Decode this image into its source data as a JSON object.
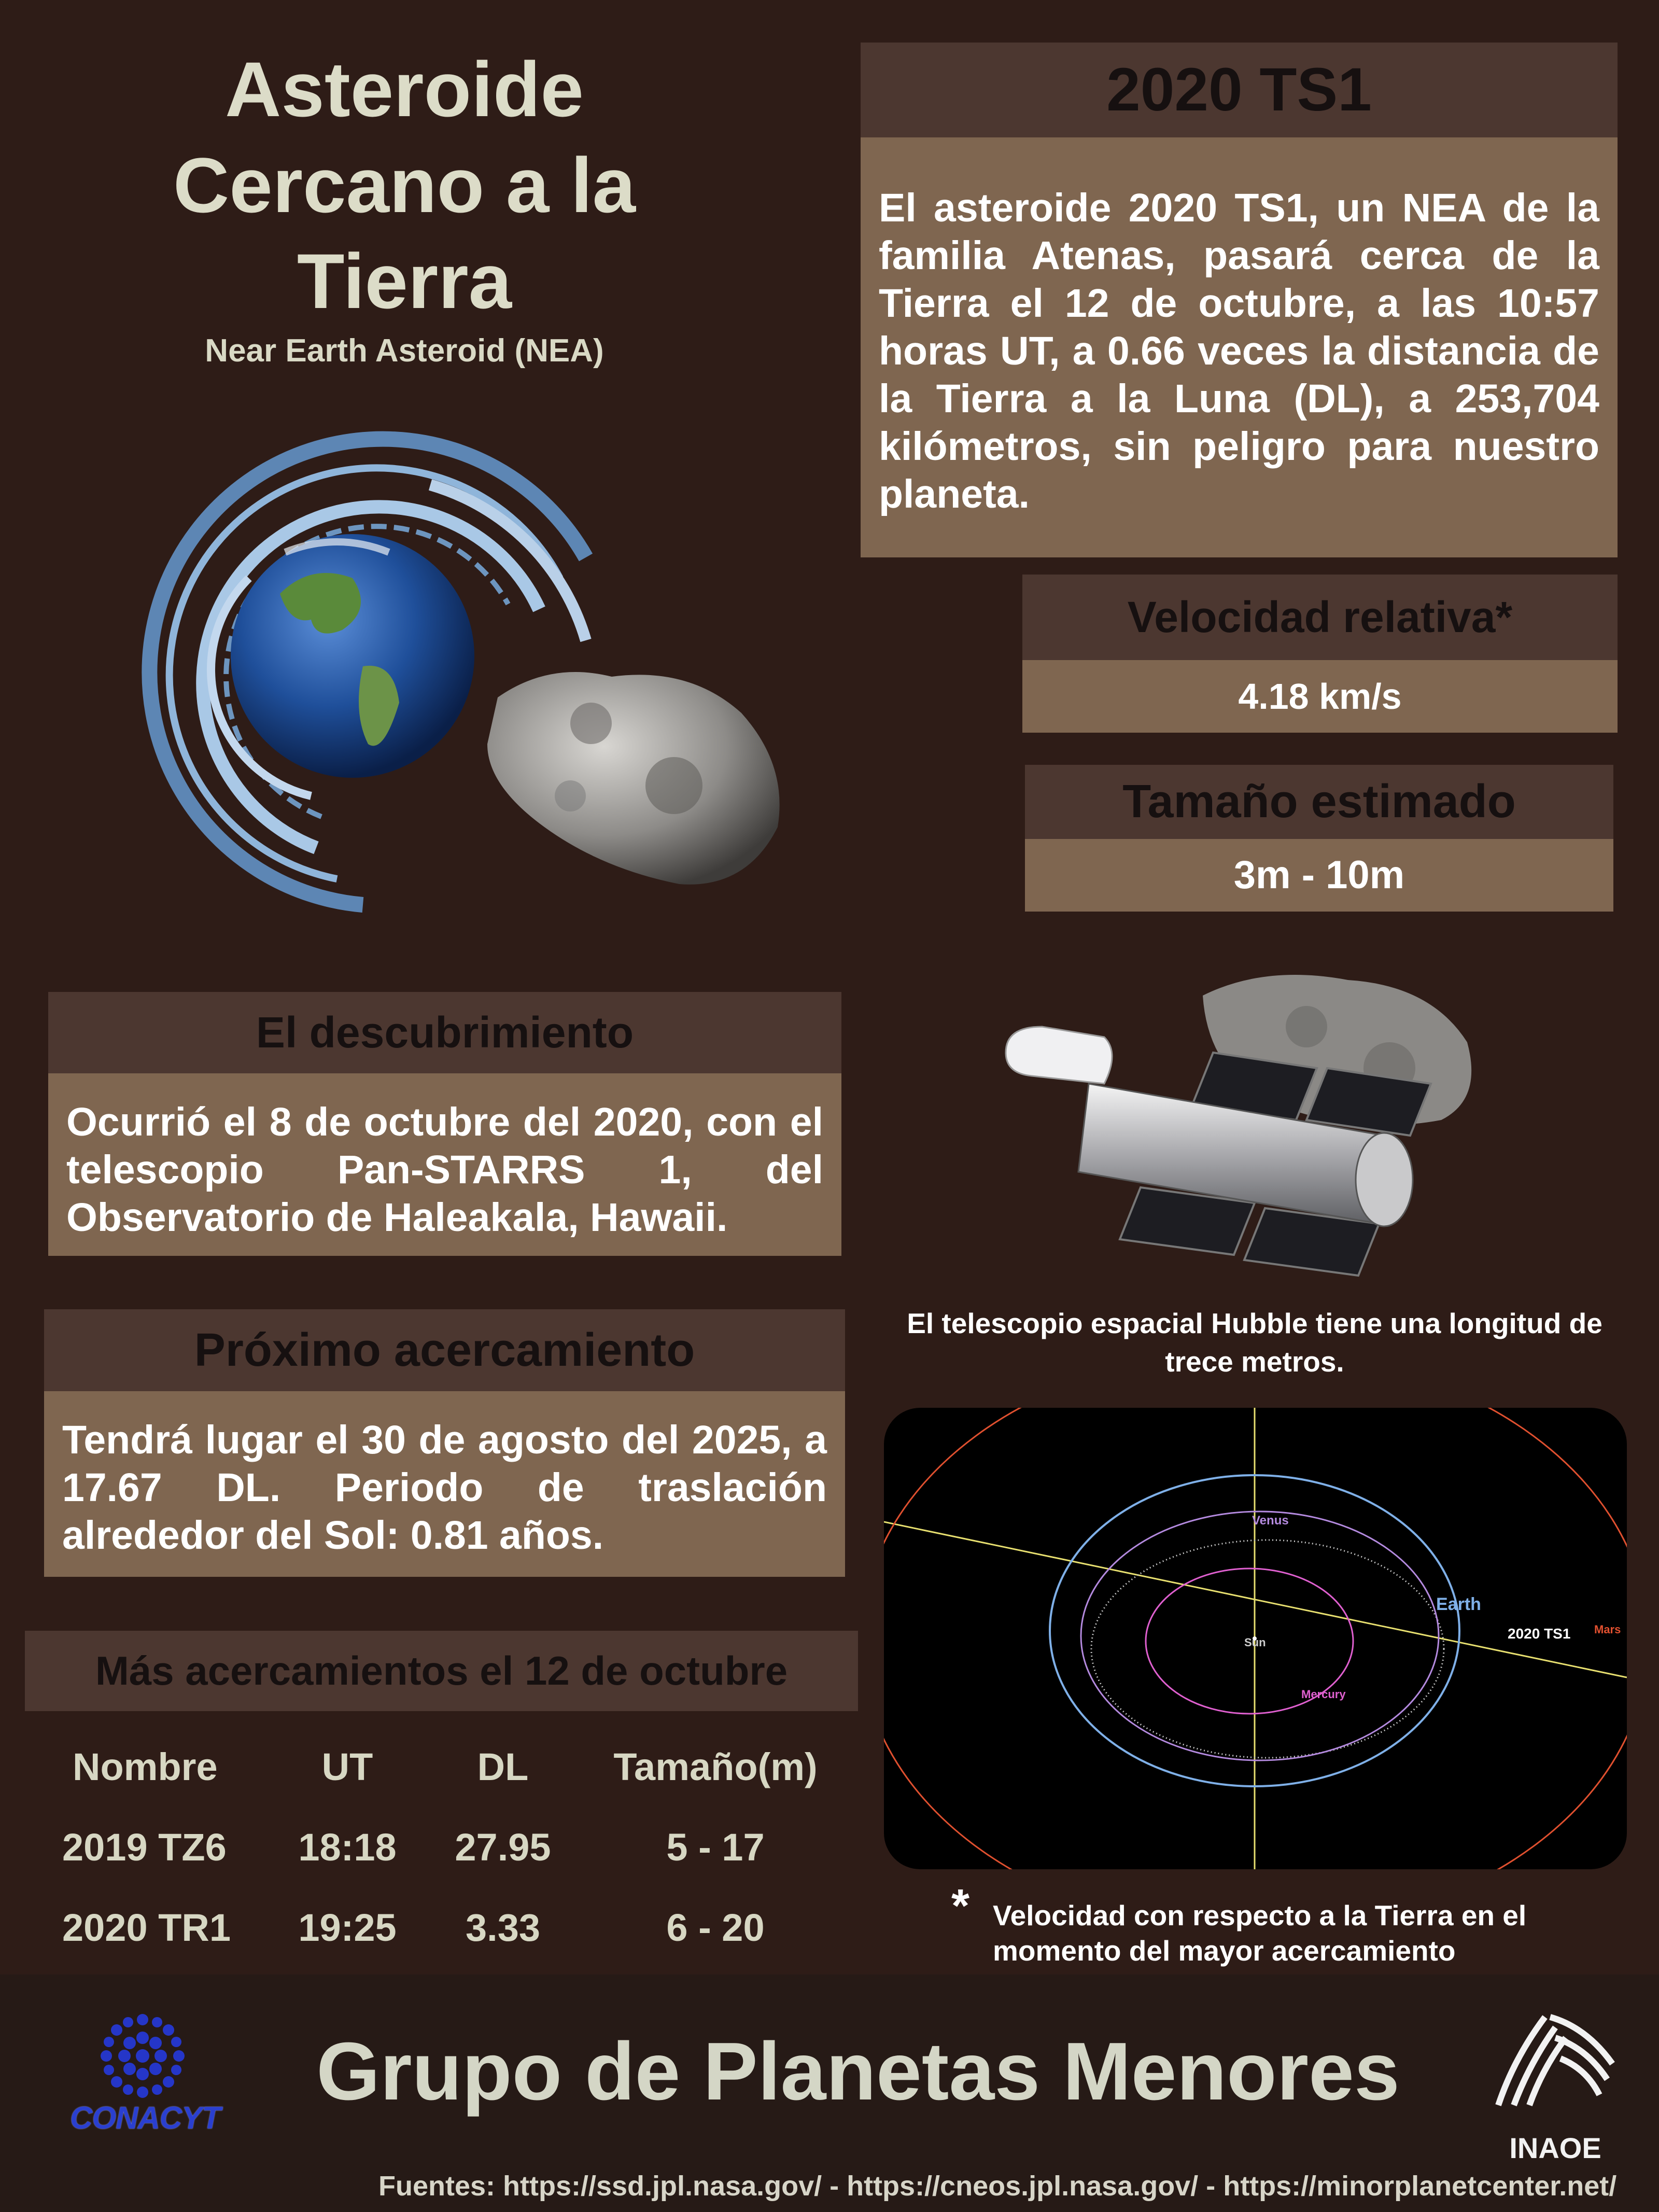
{
  "title": {
    "line1": "Asteroide",
    "line2": "Cercano a la",
    "line3": "Tierra",
    "subtitle": "Near Earth Asteroid (NEA)"
  },
  "asteroid_info": {
    "header": "2020  TS1",
    "body": "El asteroide 2020 TS1, un NEA de la familia Atenas, pasará cerca de la Tierra el 12 de octubre, a las 10:57 horas UT, a 0.66 veces la distancia de la Tierra a la Luna (DL), a 253,704 kilómetros, sin peligro para nuestro planeta."
  },
  "velocity": {
    "header": "Velocidad relativa*",
    "value": "4.18 km/s"
  },
  "size": {
    "header": "Tamaño estimado",
    "value": "3m - 10m"
  },
  "discovery": {
    "header": "El descubrimiento",
    "body": "Ocurrió el 8 de octubre del 2020, con el telescopio Pan-STARRS 1, del Observatorio de Haleakala, Hawaii."
  },
  "next_approach": {
    "header": "Próximo acercamiento",
    "body": "Tendrá lugar el 30 de agosto del 2025, a 17.67 DL. Periodo de traslación alrededor del Sol: 0.81 años."
  },
  "more_approaches": {
    "header": "Más acercamientos el 12 de octubre",
    "columns": [
      "Nombre",
      "UT",
      "DL",
      "Tamaño(m)"
    ],
    "rows": [
      [
        "2019 TZ6",
        "18:18",
        "27.95",
        "5 - 17"
      ],
      [
        "2020 TR1",
        "19:25",
        "3.33",
        "6 - 20"
      ]
    ]
  },
  "hubble_caption": "El telescopio espacial Hubble tiene una longitud de trece metros.",
  "orbit_diagram": {
    "labels": {
      "venus": "Venus",
      "earth": "Earth",
      "sun": "Sun",
      "mercury": "Mercury",
      "asteroid": "2020 TS1",
      "mars": "Mars"
    },
    "colors": {
      "venus": "#b48adf",
      "earth": "#7fb0e8",
      "mercury": "#e060d0",
      "mars": "#e0502f",
      "axis": "#e8e070"
    }
  },
  "footnote": {
    "star": "*",
    "text": "Velocidad con respecto a la Tierra en el momento del mayor acercamiento"
  },
  "footer": {
    "title": "Grupo de Planetas Menores",
    "sources": "Fuentes: https://ssd.jpl.nasa.gov/ - https://cneos.jpl.nasa.gov/ -  https://minorplanetcenter.net/",
    "conacyt": "CONACYT",
    "inaoe": "INAOE"
  },
  "colors": {
    "background": "#2e1c17",
    "panel_header": "#4c3730",
    "panel_body": "#7f6650",
    "title_text": "#dcdcc8"
  }
}
